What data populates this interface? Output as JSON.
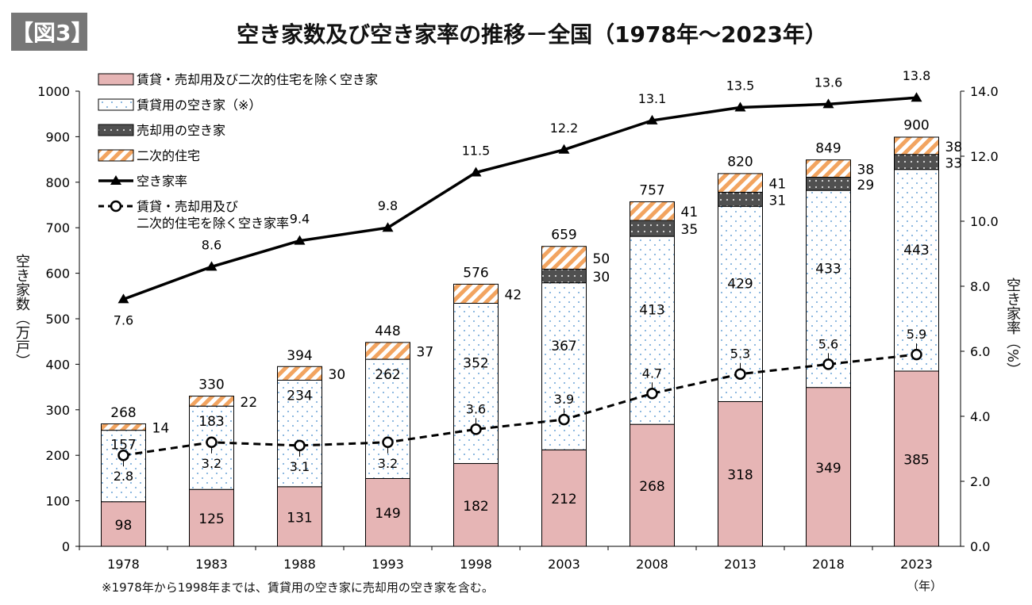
{
  "figure_tag": "【図3】",
  "title": "空き家数及び空き家率の推移－全国（1978年～2023年）",
  "footnote": "※1978年から1998年までは、賃貸用の空き家に売却用の空き家を含む。",
  "x_unit": "（年）",
  "colors": {
    "other": "#e6b5b5",
    "rental": "#ffffff",
    "rental_dot": "#6aa3d6",
    "sale": "#505050",
    "secondary": "#f2a460",
    "line": "#000000"
  },
  "chart_data": {
    "type": "bar",
    "stacked": true,
    "title": "空き家数及び空き家率の推移－全国（1978年～2023年）",
    "categories": [
      "1978",
      "1983",
      "1988",
      "1993",
      "1998",
      "2003",
      "2008",
      "2013",
      "2018",
      "2023"
    ],
    "ylabel": "空き家数（万戸）",
    "ylabel_right": "空き家率（%）",
    "ylim": [
      0,
      1000
    ],
    "yticks": [
      "0",
      "100",
      "200",
      "300",
      "400",
      "500",
      "600",
      "700",
      "800",
      "900",
      "1000"
    ],
    "ylim_right": [
      0,
      14
    ],
    "yticks_right": [
      "0.0",
      "2.0",
      "4.0",
      "6.0",
      "8.0",
      "10.0",
      "12.0",
      "14.0"
    ],
    "series": [
      {
        "name": "賃貸・売却用及び二次的住宅を除く空き家",
        "values": [
          98,
          125,
          131,
          149,
          182,
          212,
          268,
          318,
          349,
          385
        ]
      },
      {
        "name": "賃貸用の空き家（※）",
        "values": [
          157,
          183,
          234,
          262,
          352,
          367,
          413,
          429,
          433,
          443
        ]
      },
      {
        "name": "売却用の空き家",
        "values": [
          null,
          null,
          null,
          null,
          null,
          30,
          35,
          31,
          29,
          33
        ]
      },
      {
        "name": "二次的住宅",
        "values": [
          14,
          22,
          30,
          37,
          42,
          50,
          41,
          41,
          38,
          38
        ]
      }
    ],
    "totals": [
      268,
      330,
      394,
      448,
      576,
      659,
      757,
      820,
      849,
      900
    ],
    "lines": [
      {
        "name": "空き家率",
        "axis": "right",
        "values": [
          7.6,
          8.6,
          9.4,
          9.8,
          11.5,
          12.2,
          13.1,
          13.5,
          13.6,
          13.8
        ],
        "labels": [
          "7.6",
          "8.6",
          "9.4",
          "9.8",
          "11.5",
          "12.2",
          "13.1",
          "13.5",
          "13.6",
          "13.8"
        ]
      },
      {
        "name": "賃貸・売却用及び二次的住宅を除く空き家率",
        "legend_lines": [
          "賃貸・売却用及び",
          "二次的住宅を除く空き家率"
        ],
        "axis": "right",
        "values": [
          2.8,
          3.2,
          3.1,
          3.2,
          3.6,
          3.9,
          4.7,
          5.3,
          5.6,
          5.9
        ],
        "labels": [
          "2.8",
          "3.2",
          "3.1",
          "3.2",
          "3.6",
          "3.9",
          "4.7",
          "5.3",
          "5.6",
          "5.9"
        ]
      }
    ],
    "legend_position": "top-left",
    "grid": false
  }
}
